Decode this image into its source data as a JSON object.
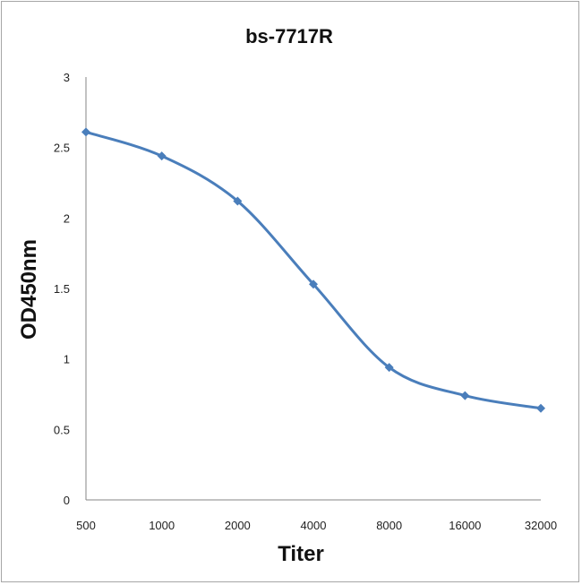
{
  "chart_data": {
    "type": "line",
    "title": "bs-7717R",
    "xlabel": "Titer",
    "ylabel": "OD450nm",
    "categories": [
      "500",
      "1000",
      "2000",
      "4000",
      "8000",
      "16000",
      "32000"
    ],
    "y_ticks": [
      "0",
      "0.5",
      "1",
      "1.5",
      "2",
      "2.5",
      "3"
    ],
    "ylim": [
      0,
      3
    ],
    "grid": false,
    "legend": "none",
    "series": [
      {
        "values": [
          2.61,
          2.44,
          2.12,
          1.53,
          0.94,
          0.74,
          0.65
        ]
      }
    ],
    "colors": {
      "line": "#4a7ebb",
      "axis": "#868686"
    }
  }
}
